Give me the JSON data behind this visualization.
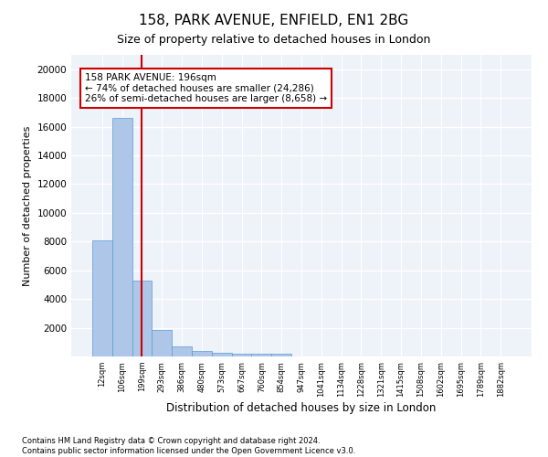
{
  "title1": "158, PARK AVENUE, ENFIELD, EN1 2BG",
  "title2": "Size of property relative to detached houses in London",
  "xlabel": "Distribution of detached houses by size in London",
  "ylabel": "Number of detached properties",
  "bar_labels": [
    "12sqm",
    "106sqm",
    "199sqm",
    "293sqm",
    "386sqm",
    "480sqm",
    "573sqm",
    "667sqm",
    "760sqm",
    "854sqm",
    "947sqm",
    "1041sqm",
    "1134sqm",
    "1228sqm",
    "1321sqm",
    "1415sqm",
    "1508sqm",
    "1602sqm",
    "1695sqm",
    "1789sqm",
    "1882sqm"
  ],
  "bar_values": [
    8100,
    16600,
    5300,
    1850,
    700,
    360,
    280,
    220,
    200,
    170,
    0,
    0,
    0,
    0,
    0,
    0,
    0,
    0,
    0,
    0,
    0
  ],
  "bar_color": "#aec6e8",
  "bar_edge_color": "#5a9bd5",
  "vline_x": 2.0,
  "vline_color": "#cc0000",
  "annotation_text": "158 PARK AVENUE: 196sqm\n← 74% of detached houses are smaller (24,286)\n26% of semi-detached houses are larger (8,658) →",
  "annotation_fontsize": 7.5,
  "annotation_box_color": "#cc0000",
  "ylim": [
    0,
    21000
  ],
  "yticks": [
    0,
    2000,
    4000,
    6000,
    8000,
    10000,
    12000,
    14000,
    16000,
    18000,
    20000
  ],
  "footer_text": "Contains HM Land Registry data © Crown copyright and database right 2024.\nContains public sector information licensed under the Open Government Licence v3.0.",
  "background_color": "#eef2f9",
  "grid_color": "#ffffff",
  "title1_fontsize": 11,
  "title2_fontsize": 9
}
